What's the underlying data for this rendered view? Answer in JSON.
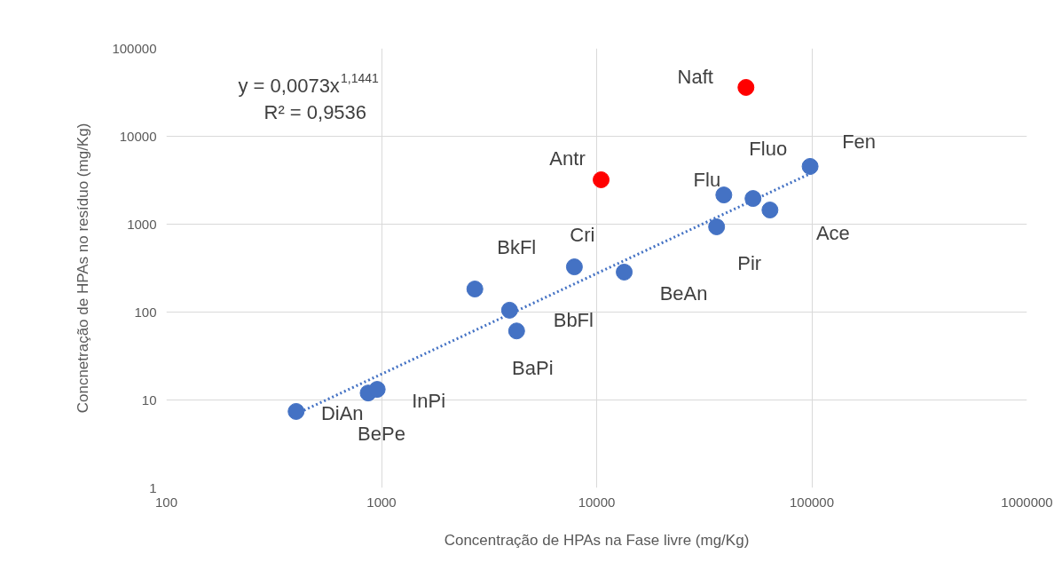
{
  "chart_data": {
    "type": "scatter",
    "xlabel": "Concentração de HPAs na Fase livre (mg/Kg)",
    "ylabel": "Concnetração de HPAs no resíduo (mg/Kg)",
    "log": "xy",
    "xlim": [
      100,
      1000000
    ],
    "ylim": [
      1,
      100000
    ],
    "xticks": [
      100,
      1000,
      10000,
      100000,
      1000000
    ],
    "yticks": [
      1,
      10,
      100,
      1000,
      10000,
      100000
    ],
    "grid": true,
    "series": [
      {
        "marker": "circle",
        "color": "#4472c4",
        "x": [
          401,
          867,
          955,
          2716,
          3937,
          4246,
          7880,
          13430,
          36100,
          39000,
          53300,
          63900,
          98200
        ],
        "values": [
          7.4,
          12,
          13.2,
          183,
          105,
          61,
          327,
          285,
          933,
          2150,
          1960,
          1450,
          4540
        ]
      },
      {
        "marker": "circle",
        "color": "#ff0000",
        "x": [
          10490,
          49430
        ],
        "values": [
          3200,
          35960
        ]
      },
      {
        "type": "line",
        "color": "#4472c4",
        "line_style": "dotted",
        "x": [
          400,
          100000
        ],
        "values": [
          6.9,
          3835
        ]
      }
    ],
    "annotations": [
      {
        "text": "DiAn",
        "x": 401,
        "y": 7.4
      },
      {
        "text": "BePe",
        "x": 867,
        "y": 12
      },
      {
        "text": "InPi",
        "x": 955,
        "y": 13.2
      },
      {
        "text": "BkFl",
        "x": 2716,
        "y": 183
      },
      {
        "text": "BbFl",
        "x": 3937,
        "y": 105
      },
      {
        "text": "BaPi",
        "x": 4246,
        "y": 61
      },
      {
        "text": "Cri",
        "x": 7880,
        "y": 327
      },
      {
        "text": "BeAn",
        "x": 13430,
        "y": 285
      },
      {
        "text": "Antr",
        "x": 10490,
        "y": 3200
      },
      {
        "text": "Naft",
        "x": 49430,
        "y": 35960
      },
      {
        "text": "Pir",
        "x": 36100,
        "y": 933
      },
      {
        "text": "Flu",
        "x": 39000,
        "y": 2150
      },
      {
        "text": "Fluo",
        "x": 53300,
        "y": 1960
      },
      {
        "text": "Ace",
        "x": 63900,
        "y": 1450
      },
      {
        "text": "Fen",
        "x": 98200,
        "y": 4540
      },
      "y = 0,0073x$^{1,1441}$",
      "R² = 0,9536"
    ]
  }
}
